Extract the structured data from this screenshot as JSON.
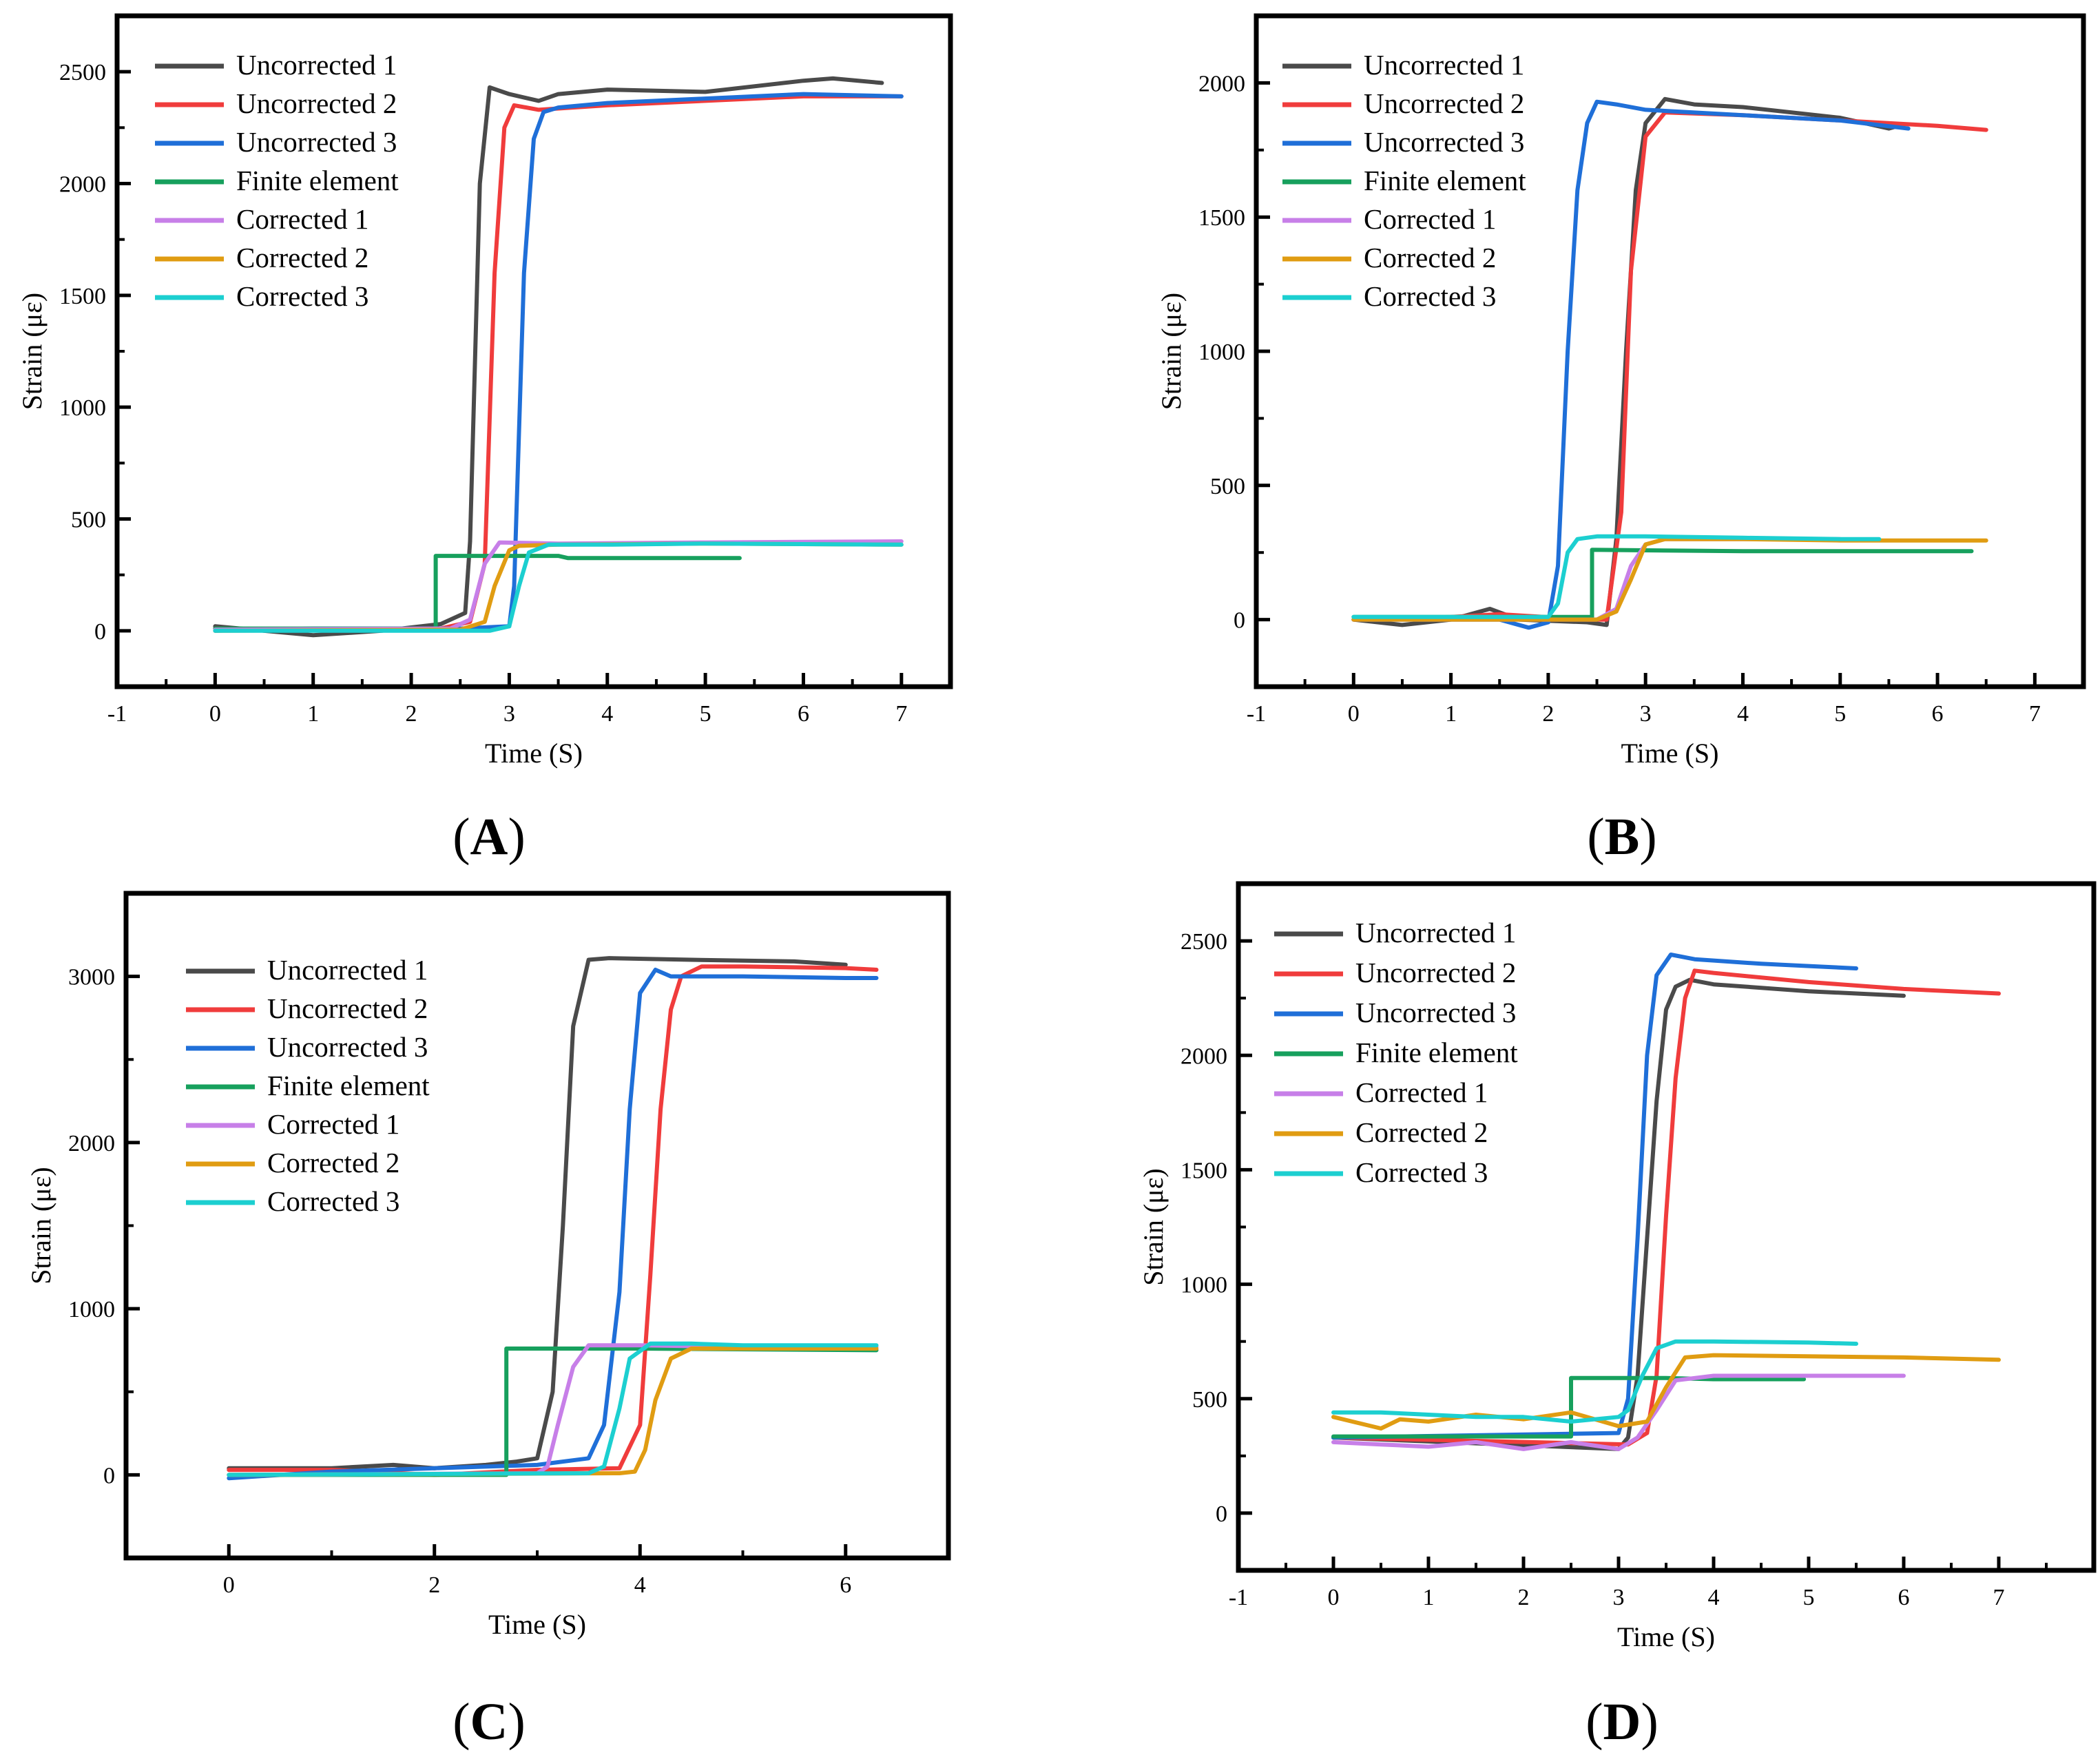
{
  "figure": {
    "kind": "multi-panel strain vs time comparison"
  },
  "series_colors": {
    "Uncorrected 1": "#4a4a4a",
    "Uncorrected 2": "#f03c3c",
    "Uncorrected 3": "#1f6fd8",
    "Finite element": "#17a05d",
    "Corrected 1": "#c77fe8",
    "Corrected 2": "#e09c12",
    "Corrected 3": "#1ccfd0"
  },
  "chart_data": [
    {
      "id": "A",
      "panel_label": "A",
      "type": "line",
      "xlabel": "Time (S)",
      "ylabel": "Strain (με)",
      "xlim": [
        -1,
        7.5
      ],
      "ylim": [
        -250,
        2750
      ],
      "xticks": [
        -1,
        0,
        1,
        2,
        3,
        4,
        5,
        6,
        7
      ],
      "yticks": [
        0,
        500,
        1000,
        1500,
        2000,
        2500
      ],
      "legend": "top-left",
      "series": [
        {
          "name": "Uncorrected 1",
          "x": [
            0,
            1.0,
            1.7,
            2.3,
            2.55,
            2.6,
            2.7,
            2.8,
            3.0,
            3.3,
            3.5,
            4.0,
            5.0,
            6.0,
            6.3,
            6.8
          ],
          "y": [
            20,
            -20,
            0,
            30,
            80,
            400,
            2000,
            2430,
            2400,
            2370,
            2400,
            2420,
            2410,
            2460,
            2470,
            2450
          ]
        },
        {
          "name": "Uncorrected 2",
          "x": [
            0,
            1.0,
            2.3,
            2.6,
            2.75,
            2.85,
            2.95,
            3.05,
            3.3,
            4.0,
            5.0,
            6.0,
            7.0
          ],
          "y": [
            10,
            5,
            10,
            40,
            300,
            1600,
            2250,
            2350,
            2330,
            2350,
            2370,
            2390,
            2390
          ]
        },
        {
          "name": "Uncorrected 3",
          "x": [
            0,
            1.0,
            2.5,
            3.0,
            3.05,
            3.15,
            3.25,
            3.35,
            3.5,
            4.0,
            5.0,
            6.0,
            7.0
          ],
          "y": [
            0,
            10,
            10,
            20,
            200,
            1600,
            2200,
            2320,
            2340,
            2360,
            2380,
            2400,
            2390
          ]
        },
        {
          "name": "Finite element",
          "x": [
            0,
            2.25,
            2.25,
            3.5,
            3.6,
            5.35
          ],
          "y": [
            10,
            10,
            335,
            335,
            325,
            325
          ]
        },
        {
          "name": "Corrected 1",
          "x": [
            0,
            2.4,
            2.6,
            2.75,
            2.9,
            3.5,
            5.0,
            7.0
          ],
          "y": [
            5,
            10,
            50,
            300,
            395,
            390,
            395,
            400
          ]
        },
        {
          "name": "Corrected 2",
          "x": [
            0,
            2.5,
            2.75,
            2.85,
            3.0,
            3.1,
            3.5,
            5.0,
            7.0
          ],
          "y": [
            0,
            5,
            40,
            200,
            360,
            380,
            385,
            390,
            385
          ]
        },
        {
          "name": "Corrected 3",
          "x": [
            0,
            2.8,
            3.0,
            3.1,
            3.2,
            3.4,
            4.0,
            5.0,
            7.0
          ],
          "y": [
            0,
            0,
            20,
            200,
            350,
            385,
            385,
            390,
            385
          ]
        }
      ]
    },
    {
      "id": "B",
      "panel_label": "B",
      "type": "line",
      "xlabel": "Time (S)",
      "ylabel": "Strain (με)",
      "xlim": [
        -1,
        7.5
      ],
      "ylim": [
        -250,
        2250
      ],
      "xticks": [
        -1,
        0,
        1,
        2,
        3,
        4,
        5,
        6,
        7
      ],
      "yticks": [
        0,
        500,
        1000,
        1500,
        2000
      ],
      "legend": "top-left",
      "series": [
        {
          "name": "Uncorrected 1",
          "x": [
            0,
            0.5,
            1.0,
            1.4,
            1.7,
            2.4,
            2.6,
            2.7,
            2.8,
            2.9,
            3.0,
            3.2,
            3.5,
            4.0,
            5.0,
            5.5,
            5.6
          ],
          "y": [
            0,
            -20,
            0,
            40,
            0,
            -10,
            -20,
            300,
            1000,
            1600,
            1850,
            1940,
            1920,
            1910,
            1870,
            1830,
            1840
          ]
        },
        {
          "name": "Uncorrected 2",
          "x": [
            0,
            1.0,
            1.5,
            2.4,
            2.6,
            2.75,
            2.85,
            3.0,
            3.2,
            4.0,
            5.0,
            6.0,
            6.5
          ],
          "y": [
            0,
            10,
            20,
            0,
            0,
            400,
            1300,
            1800,
            1890,
            1880,
            1860,
            1840,
            1825
          ]
        },
        {
          "name": "Uncorrected 3",
          "x": [
            0,
            1.5,
            1.8,
            2.0,
            2.1,
            2.2,
            2.3,
            2.4,
            2.5,
            2.7,
            3.0,
            4.0,
            5.0,
            5.7
          ],
          "y": [
            0,
            0,
            -30,
            -10,
            200,
            1000,
            1600,
            1850,
            1930,
            1920,
            1900,
            1880,
            1860,
            1830
          ]
        },
        {
          "name": "Finite element",
          "x": [
            0,
            2.45,
            2.45,
            4.0,
            6.35
          ],
          "y": [
            10,
            10,
            260,
            255,
            255
          ]
        },
        {
          "name": "Corrected 1",
          "x": [
            0,
            2.5,
            2.7,
            2.85,
            3.0,
            3.2,
            4.0,
            5.0
          ],
          "y": [
            0,
            0,
            40,
            200,
            280,
            300,
            300,
            300
          ]
        },
        {
          "name": "Corrected 2",
          "x": [
            0,
            2.5,
            2.7,
            2.85,
            3.0,
            3.2,
            4.0,
            5.0,
            6.0,
            6.5
          ],
          "y": [
            0,
            0,
            30,
            150,
            280,
            300,
            300,
            295,
            295,
            295
          ]
        },
        {
          "name": "Corrected 3",
          "x": [
            0,
            2.0,
            2.1,
            2.2,
            2.3,
            2.5,
            3.0,
            4.0,
            5.0,
            5.4
          ],
          "y": [
            10,
            10,
            60,
            250,
            300,
            310,
            310,
            305,
            300,
            300
          ]
        }
      ]
    },
    {
      "id": "C",
      "panel_label": "C",
      "type": "line",
      "xlabel": "Time (S)",
      "ylabel": "Strain (με)",
      "xlim": [
        -1,
        7
      ],
      "ylim": [
        -500,
        3500
      ],
      "xticks": [
        0,
        2,
        4,
        6
      ],
      "yticks": [
        0,
        1000,
        2000,
        3000
      ],
      "legend": "top-left",
      "series": [
        {
          "name": "Uncorrected 1",
          "x": [
            0,
            0.5,
            1.0,
            1.6,
            2.0,
            2.5,
            2.8,
            3.0,
            3.15,
            3.25,
            3.35,
            3.5,
            3.7,
            4.5,
            5.5,
            6.0
          ],
          "y": [
            40,
            40,
            40,
            60,
            40,
            60,
            80,
            100,
            500,
            1500,
            2700,
            3100,
            3110,
            3100,
            3090,
            3070
          ]
        },
        {
          "name": "Uncorrected 2",
          "x": [
            0,
            1.0,
            2.0,
            3.0,
            3.8,
            4.0,
            4.1,
            4.2,
            4.3,
            4.4,
            4.6,
            5.0,
            6.0,
            6.3
          ],
          "y": [
            30,
            30,
            0,
            30,
            40,
            300,
            1200,
            2200,
            2800,
            3000,
            3060,
            3060,
            3050,
            3040
          ]
        },
        {
          "name": "Uncorrected 3",
          "x": [
            0,
            1.0,
            2.0,
            3.0,
            3.5,
            3.65,
            3.8,
            3.9,
            4.0,
            4.15,
            4.3,
            5.0,
            6.0,
            6.3
          ],
          "y": [
            -20,
            20,
            40,
            60,
            100,
            300,
            1100,
            2200,
            2900,
            3040,
            3000,
            3000,
            2990,
            2990
          ]
        },
        {
          "name": "Finite element",
          "x": [
            0,
            2.7,
            2.7,
            4.0,
            6.3
          ],
          "y": [
            0,
            0,
            760,
            760,
            750
          ]
        },
        {
          "name": "Corrected 1",
          "x": [
            0,
            3.0,
            3.1,
            3.2,
            3.35,
            3.5,
            4.0,
            5.0,
            6.3
          ],
          "y": [
            0,
            10,
            50,
            300,
            650,
            780,
            780,
            770,
            770
          ]
        },
        {
          "name": "Corrected 2",
          "x": [
            0,
            3.8,
            3.95,
            4.05,
            4.15,
            4.3,
            4.5,
            5.0,
            6.3
          ],
          "y": [
            0,
            10,
            20,
            150,
            450,
            700,
            760,
            760,
            760
          ]
        },
        {
          "name": "Corrected 3",
          "x": [
            0,
            3.5,
            3.65,
            3.8,
            3.9,
            4.1,
            4.5,
            5.0,
            6.3
          ],
          "y": [
            0,
            10,
            50,
            400,
            700,
            790,
            790,
            780,
            780
          ]
        }
      ]
    },
    {
      "id": "D",
      "panel_label": "D",
      "type": "line",
      "xlabel": "Time (S)",
      "ylabel": "Strain (με)",
      "xlim": [
        -1,
        8
      ],
      "ylim": [
        -250,
        2750
      ],
      "xticks": [
        -1,
        0,
        1,
        2,
        3,
        4,
        5,
        6,
        7
      ],
      "yticks": [
        0,
        500,
        1000,
        1500,
        2000,
        2500
      ],
      "legend": "top-left",
      "series": [
        {
          "name": "Uncorrected 1",
          "x": [
            0,
            3.0,
            3.1,
            3.2,
            3.3,
            3.4,
            3.5,
            3.6,
            3.75,
            4.0,
            5.0,
            6.0
          ],
          "y": [
            330,
            280,
            330,
            600,
            1200,
            1800,
            2200,
            2300,
            2330,
            2310,
            2280,
            2260
          ]
        },
        {
          "name": "Uncorrected 2",
          "x": [
            0,
            3.1,
            3.3,
            3.4,
            3.5,
            3.6,
            3.7,
            3.8,
            4.0,
            5.0,
            6.0,
            7.0
          ],
          "y": [
            330,
            300,
            350,
            600,
            1300,
            1900,
            2250,
            2370,
            2360,
            2320,
            2290,
            2270
          ]
        },
        {
          "name": "Uncorrected 3",
          "x": [
            0,
            3.0,
            3.1,
            3.2,
            3.3,
            3.4,
            3.55,
            3.8,
            4.5,
            5.0,
            5.5
          ],
          "y": [
            330,
            350,
            500,
            1200,
            2000,
            2350,
            2440,
            2420,
            2400,
            2390,
            2380
          ]
        },
        {
          "name": "Finite element",
          "x": [
            0,
            2.5,
            2.5,
            3.5,
            4.0,
            4.95
          ],
          "y": [
            335,
            335,
            590,
            590,
            585,
            585
          ]
        },
        {
          "name": "Corrected 1",
          "x": [
            0,
            0.5,
            1.0,
            1.5,
            2.0,
            2.5,
            3.0,
            3.2,
            3.4,
            3.6,
            4.0,
            5.0,
            6.0
          ],
          "y": [
            310,
            300,
            290,
            310,
            280,
            310,
            280,
            330,
            450,
            580,
            600,
            600,
            600
          ]
        },
        {
          "name": "Corrected 2",
          "x": [
            0,
            0.5,
            0.7,
            1.0,
            1.5,
            2.0,
            2.5,
            3.0,
            3.3,
            3.5,
            3.7,
            4.0,
            5.0,
            6.0,
            7.0
          ],
          "y": [
            420,
            370,
            410,
            400,
            430,
            410,
            440,
            380,
            400,
            550,
            680,
            690,
            685,
            680,
            670
          ]
        },
        {
          "name": "Corrected 3",
          "x": [
            0,
            0.5,
            1.0,
            1.5,
            2.0,
            2.5,
            3.0,
            3.1,
            3.25,
            3.4,
            3.6,
            4.0,
            5.0,
            5.5
          ],
          "y": [
            440,
            440,
            430,
            420,
            420,
            400,
            420,
            450,
            600,
            720,
            750,
            750,
            745,
            740
          ]
        }
      ]
    }
  ]
}
